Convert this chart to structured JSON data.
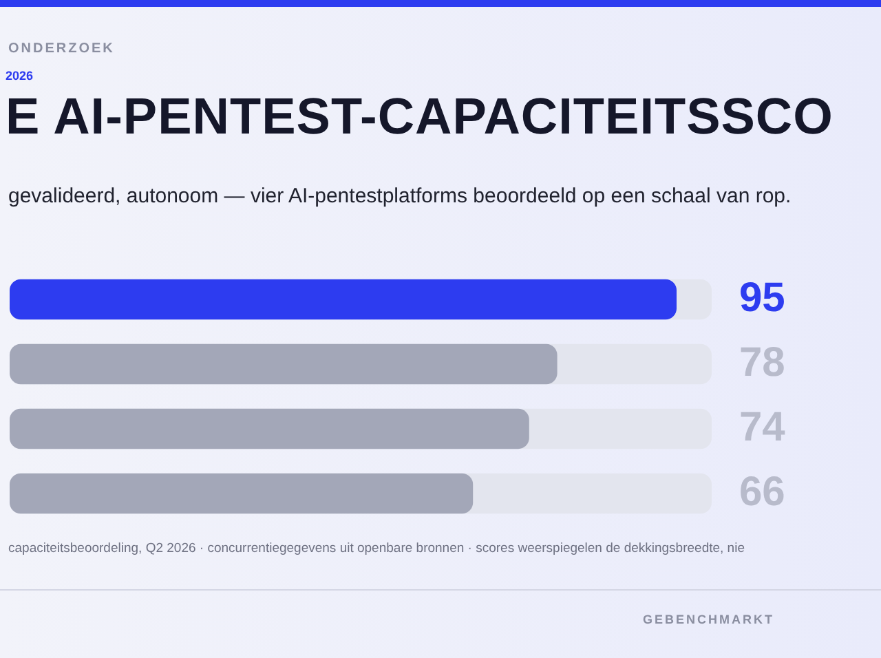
{
  "chart_data": {
    "type": "bar",
    "orientation": "horizontal",
    "title": "E AI-PENTEST-CAPACITEITSSCO",
    "subtitle": "gevalideerd, autonoom — vier AI-pentestplatforms beoordeeld op een schaal van rop.",
    "annotations": [
      "ONDERZOEK",
      "2026",
      "capaciteitsbeoordeling, Q2 2026 · concurrentiegegevens uit openbare bronnen · scores weerspiegelen de dekkingsbreedte, nie",
      "GEBENCHMARKT"
    ],
    "categories": [
      null,
      null,
      null,
      null
    ],
    "values": [
      95,
      78,
      74,
      66
    ],
    "colors": [
      "#2d3cf0",
      "#a3a7b8",
      "#a3a7b8",
      "#a3a7b8"
    ],
    "xlim": [
      0,
      100
    ],
    "data_labels": true
  }
}
